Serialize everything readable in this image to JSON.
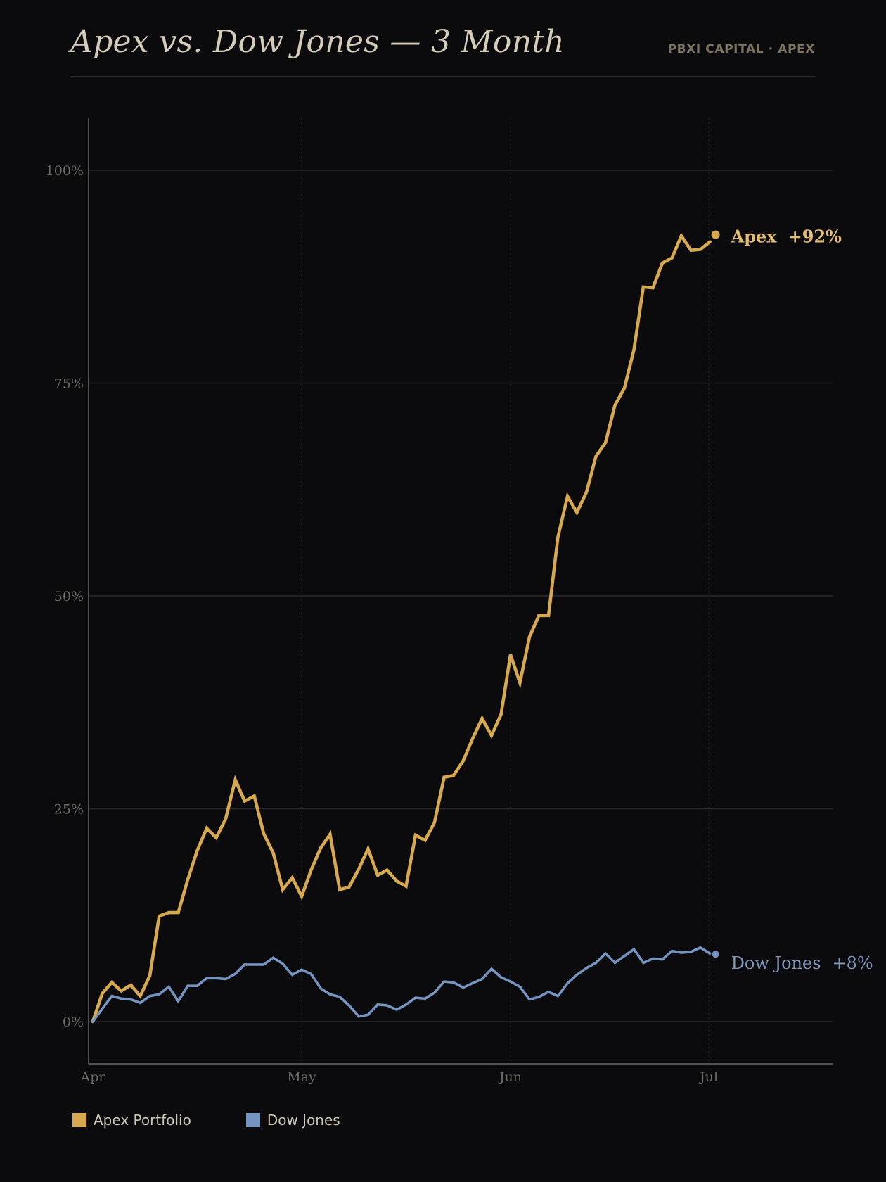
{
  "header": {
    "title": "Apex vs. Dow Jones — 3 Month",
    "brand": "PBXI CAPITAL · APEX"
  },
  "colors": {
    "background": "#0b0a0d",
    "apex": "#d6a94f",
    "dow": "#7594c0",
    "grid": "#2a292d",
    "axis": "#6a6868",
    "tick_text": "#6d6a66"
  },
  "legend": {
    "items": [
      {
        "label": "Apex Portfolio",
        "color": "#d6a94f"
      },
      {
        "label": "Dow Jones",
        "color": "#7594c0"
      }
    ]
  },
  "chart_data": {
    "type": "line",
    "title": "Apex vs. Dow Jones — 3 Month",
    "xlabel": "",
    "ylabel": "",
    "xlim": [
      0,
      3.6
    ],
    "ylim": [
      -5,
      106
    ],
    "x_ticks": [
      {
        "value": 0,
        "label": "Apr"
      },
      {
        "value": 1,
        "label": "May"
      },
      {
        "value": 2,
        "label": "Jun"
      },
      {
        "value": 2.95,
        "label": "Jul"
      }
    ],
    "y_ticks": [
      {
        "value": 0,
        "label": "0%"
      },
      {
        "value": 25,
        "label": "25%"
      },
      {
        "value": 50,
        "label": "50%"
      },
      {
        "value": 75,
        "label": "75%"
      },
      {
        "value": 100,
        "label": "100%"
      }
    ],
    "grid": true,
    "legend_position": "bottom-left",
    "end_labels": [
      {
        "series": "Apex",
        "name": "Apex",
        "value": "+92%"
      },
      {
        "series": "Dow Jones",
        "name": "Dow Jones",
        "value": "+8%"
      }
    ],
    "series": [
      {
        "name": "Apex Portfolio",
        "color": "#d6a94f",
        "x": [
          0,
          0.045,
          0.091,
          0.136,
          0.182,
          0.227,
          0.273,
          0.318,
          0.364,
          0.409,
          0.455,
          0.5,
          0.545,
          0.591,
          0.636,
          0.682,
          0.727,
          0.773,
          0.818,
          0.864,
          0.909,
          0.955,
          1.0,
          1.045,
          1.091,
          1.136,
          1.182,
          1.227,
          1.273,
          1.318,
          1.364,
          1.409,
          1.455,
          1.5,
          1.545,
          1.591,
          1.636,
          1.682,
          1.727,
          1.773,
          1.818,
          1.864,
          1.909,
          1.955,
          2.0,
          2.045,
          2.091,
          2.136,
          2.182,
          2.227,
          2.273,
          2.318,
          2.364,
          2.409,
          2.455,
          2.5,
          2.545,
          2.591,
          2.636,
          2.682,
          2.727,
          2.773,
          2.818,
          2.864,
          2.909,
          2.955
        ],
        "values": [
          0,
          3.3,
          4.6,
          3.6,
          4.3,
          3,
          5.4,
          12.4,
          12.8,
          12.8,
          16.7,
          20.1,
          22.7,
          21.6,
          23.8,
          28.4,
          25.9,
          26.5,
          22.1,
          19.8,
          15.5,
          16.9,
          14.7,
          17.8,
          20.4,
          22,
          15.5,
          15.8,
          17.9,
          20.3,
          17.2,
          17.8,
          16.5,
          15.9,
          21.9,
          21.3,
          23.4,
          28.7,
          28.9,
          30.6,
          33.2,
          35.6,
          33.6,
          36.1,
          43.1,
          39.8,
          45.2,
          47.7,
          47.7,
          56.9,
          61.7,
          59.8,
          62.2,
          66.4,
          68,
          72.4,
          74.4,
          78.9,
          86.3,
          86.2,
          89.1,
          89.7,
          92.3,
          90.6,
          90.7,
          91.6
        ]
      },
      {
        "name": "Dow Jones",
        "color": "#7594c0",
        "x": [
          0,
          0.045,
          0.091,
          0.136,
          0.182,
          0.227,
          0.273,
          0.318,
          0.364,
          0.409,
          0.455,
          0.5,
          0.545,
          0.591,
          0.636,
          0.682,
          0.727,
          0.773,
          0.818,
          0.864,
          0.909,
          0.955,
          1.0,
          1.045,
          1.091,
          1.136,
          1.182,
          1.227,
          1.273,
          1.318,
          1.364,
          1.409,
          1.455,
          1.5,
          1.545,
          1.591,
          1.636,
          1.682,
          1.727,
          1.773,
          1.818,
          1.864,
          1.909,
          1.955,
          2.0,
          2.045,
          2.091,
          2.136,
          2.182,
          2.227,
          2.273,
          2.318,
          2.364,
          2.409,
          2.455,
          2.5,
          2.545,
          2.591,
          2.636,
          2.682,
          2.727,
          2.773,
          2.818,
          2.864,
          2.909,
          2.955
        ],
        "values": [
          0,
          1.5,
          3,
          2.7,
          2.6,
          2.2,
          3,
          3.2,
          4.1,
          2.4,
          4.2,
          4.2,
          5.1,
          5.1,
          5,
          5.6,
          6.7,
          6.7,
          6.7,
          7.5,
          6.8,
          5.5,
          6.1,
          5.6,
          3.9,
          3.2,
          2.9,
          1.9,
          0.6,
          0.8,
          2,
          1.9,
          1.4,
          2,
          2.8,
          2.7,
          3.4,
          4.7,
          4.6,
          4,
          4.5,
          5,
          6.2,
          5.2,
          4.7,
          4.1,
          2.6,
          2.9,
          3.5,
          3,
          4.5,
          5.5,
          6.3,
          6.9,
          8,
          6.9,
          7.7,
          8.5,
          6.9,
          7.4,
          7.3,
          8.3,
          8.1,
          8.2,
          8.7,
          8
        ]
      }
    ]
  }
}
